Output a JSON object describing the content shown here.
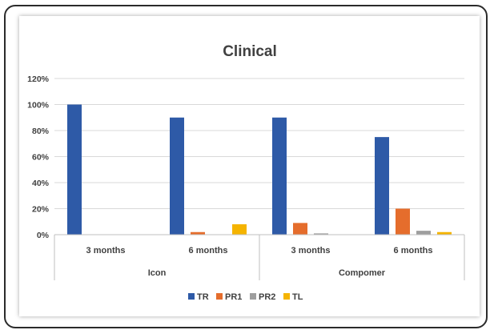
{
  "chart_data": {
    "type": "bar",
    "title": "Clinical",
    "groups": [
      "Icon",
      "Compomer"
    ],
    "categories": [
      "3 months",
      "6 months",
      "3 months",
      "6 months"
    ],
    "category_group": [
      "Icon",
      "Icon",
      "Compomer",
      "Compomer"
    ],
    "y_ticks": [
      "0%",
      "20%",
      "40%",
      "60%",
      "80%",
      "100%",
      "120%"
    ],
    "ylim": [
      0,
      120
    ],
    "grid": true,
    "legend_position": "bottom",
    "series": [
      {
        "name": "TR",
        "color": "#2e5aa7",
        "values": [
          100,
          90,
          90,
          75
        ]
      },
      {
        "name": "PR1",
        "color": "#e56d2c",
        "values": [
          0,
          2,
          9,
          20
        ]
      },
      {
        "name": "PR2",
        "color": "#9e9e9e",
        "values": [
          0,
          0,
          1,
          3
        ]
      },
      {
        "name": "TL",
        "color": "#f5b400",
        "values": [
          0,
          8,
          0,
          2
        ]
      }
    ]
  }
}
